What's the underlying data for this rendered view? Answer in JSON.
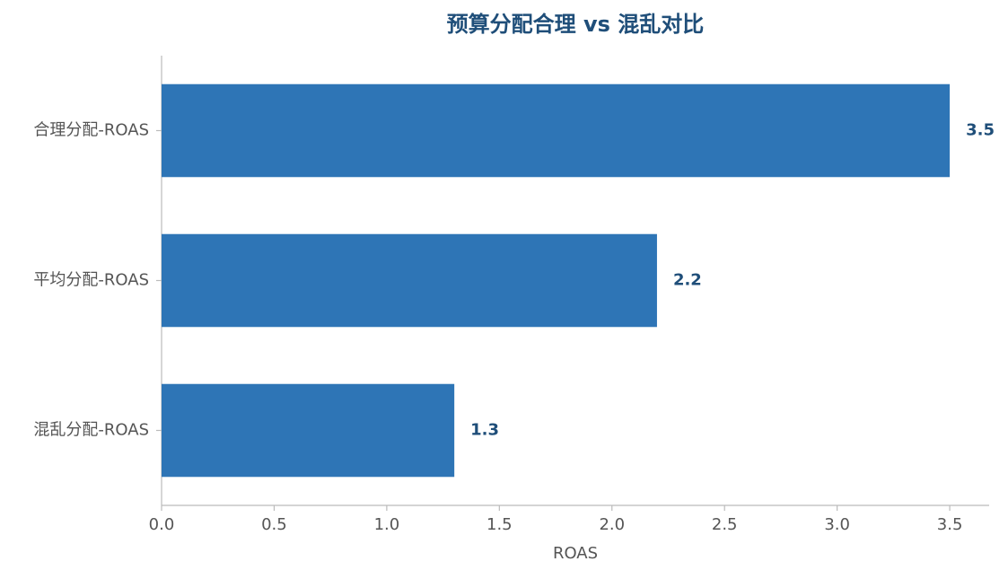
{
  "chart_data": {
    "type": "bar",
    "orientation": "horizontal",
    "title": "预算分配合理 vs 混乱对比",
    "categories": [
      "合理分配-ROAS",
      "平均分配-ROAS",
      "混乱分配-ROAS"
    ],
    "values": [
      3.5,
      2.2,
      1.3
    ],
    "color": "#2e75b6",
    "xlabel": "ROAS",
    "xlim": [
      0,
      3.675
    ],
    "xticks": [
      {
        "value": 0,
        "label": "0.0"
      },
      0.5,
      {
        "value": 1,
        "label": "1.0"
      },
      1.5,
      {
        "value": 2,
        "label": "2.0"
      },
      2.5,
      {
        "value": 3,
        "label": "3.0"
      },
      3.5
    ],
    "grid": false
  }
}
